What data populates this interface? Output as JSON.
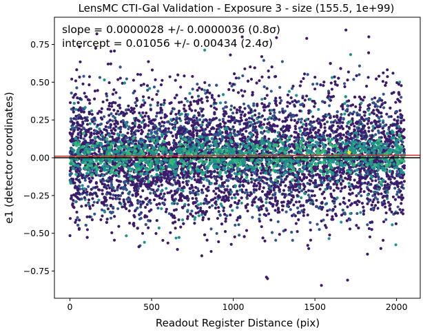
{
  "chart_data": {
    "type": "scatter",
    "title": "LensMC CTI-Gal Validation - Exposure 3 - size (155.5, 1e+99)",
    "xlabel": "Readout Register Distance (pix)",
    "ylabel": "e1 (detector coordinates)",
    "xlim": [
      -95,
      2145
    ],
    "ylim": [
      -0.93,
      0.93
    ],
    "x_ticks": [
      0,
      500,
      1000,
      1500,
      2000
    ],
    "y_ticks": [
      -0.75,
      -0.5,
      -0.25,
      0.0,
      0.25,
      0.5,
      0.75
    ],
    "x_tick_labels": [
      "0",
      "500",
      "1000",
      "1500",
      "2000"
    ],
    "y_tick_labels": [
      "−0.75",
      "−0.50",
      "−0.25",
      "0.00",
      "0.25",
      "0.50",
      "0.75"
    ],
    "grid": false,
    "annotations": [
      "slope = 0.0000028 +/- 0.0000036 (0.8σ)",
      "intercept = 0.01056 +/- 0.00434 (2.4σ)"
    ],
    "fit_line": {
      "slope": 2.8e-06,
      "intercept": 0.01056,
      "x_range": [
        -95,
        2145
      ],
      "color": "#d62728"
    },
    "reference_line": {
      "y": 0.0,
      "color": "#000000"
    },
    "scatter": {
      "x_range": [
        0,
        2048
      ],
      "colormap": "viridis",
      "point_count_approx": 6000,
      "extreme_points": [
        {
          "x": 1540,
          "y": -0.845
        },
        {
          "x": 1700,
          "y": -0.81
        },
        {
          "x": 1203,
          "y": -0.79
        },
        {
          "x": 1210,
          "y": -0.8
        },
        {
          "x": 1690,
          "y": 0.845
        },
        {
          "x": 165,
          "y": 0.82
        },
        {
          "x": 1830,
          "y": 0.8
        },
        {
          "x": 1055,
          "y": 0.8
        },
        {
          "x": 1265,
          "y": 0.795
        },
        {
          "x": 1450,
          "y": 0.79
        }
      ]
    },
    "colors": {
      "dark": "#3b1c6b",
      "mid_blue": "#31568b",
      "teal": "#21918c",
      "green": "#35b779",
      "yellow": "#fde725"
    }
  }
}
